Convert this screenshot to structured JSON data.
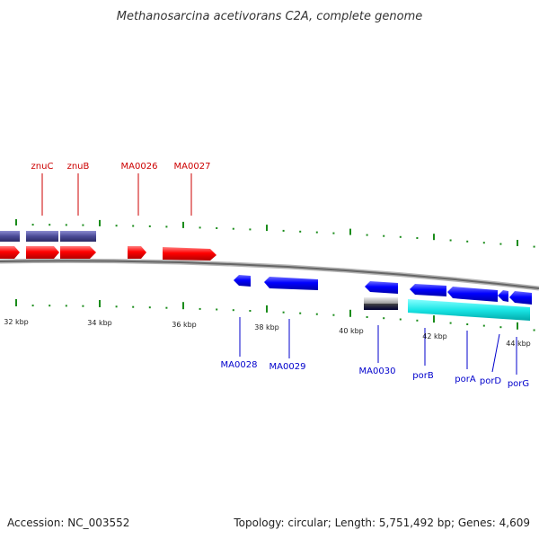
{
  "title": "Methanosarcina acetivorans C2A, complete genome",
  "footer": {
    "accession": "Accession: NC_003552",
    "topology": "Topology: circular; Length: 5,751,492 bp; Genes: 4,609"
  },
  "colors": {
    "forward_cds": "#ff1a1a",
    "reverse_cds": "#1a1aff",
    "forward_blocks": "#4a4a8c",
    "reverse_blocks_cyan": "#1ae6e6",
    "tick": "#1a8c1a",
    "backbone": "#777777",
    "label_forward": "#cc0000",
    "label_reverse": "#0000cc"
  },
  "scale": {
    "tick_labels": [
      "32 kbp",
      "34 kbp",
      "36 kbp",
      "38 kbp",
      "40 kbp",
      "42 kbp",
      "44 kbp"
    ]
  },
  "genes": {
    "forward_labels": [
      "znuC",
      "znuB",
      "MA0026",
      "MA0027"
    ],
    "reverse_labels": [
      "MA0028",
      "MA0029",
      "MA0030",
      "porB",
      "porA",
      "porD",
      "porG"
    ]
  }
}
